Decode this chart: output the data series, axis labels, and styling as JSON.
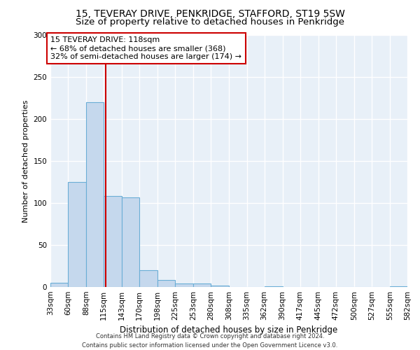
{
  "title1": "15, TEVERAY DRIVE, PENKRIDGE, STAFFORD, ST19 5SW",
  "title2": "Size of property relative to detached houses in Penkridge",
  "xlabel": "Distribution of detached houses by size in Penkridge",
  "ylabel": "Number of detached properties",
  "footnote": "Contains HM Land Registry data © Crown copyright and database right 2024.\nContains public sector information licensed under the Open Government Licence v3.0.",
  "bin_edges": [
    33,
    60,
    88,
    115,
    143,
    170,
    198,
    225,
    253,
    280,
    308,
    335,
    362,
    390,
    417,
    445,
    472,
    500,
    527,
    555,
    582
  ],
  "bar_heights": [
    5,
    125,
    220,
    108,
    107,
    20,
    8,
    4,
    4,
    2,
    0,
    0,
    1,
    0,
    0,
    0,
    0,
    0,
    0,
    1
  ],
  "bar_color": "#c5d8ed",
  "bar_edge_color": "#6aaed6",
  "property_size": 118,
  "vline_color": "#cc0000",
  "annotation_text": "15 TEVERAY DRIVE: 118sqm\n← 68% of detached houses are smaller (368)\n32% of semi-detached houses are larger (174) →",
  "annotation_box_color": "#ffffff",
  "annotation_box_edgecolor": "#cc0000",
  "ylim": [
    0,
    300
  ],
  "yticks": [
    0,
    50,
    100,
    150,
    200,
    250,
    300
  ],
  "bg_color": "#e8f0f8",
  "grid_color": "#ffffff",
  "title1_fontsize": 10,
  "title2_fontsize": 9.5,
  "annotation_fontsize": 8,
  "xlabel_fontsize": 8.5,
  "ylabel_fontsize": 8,
  "tick_fontsize": 7.5
}
